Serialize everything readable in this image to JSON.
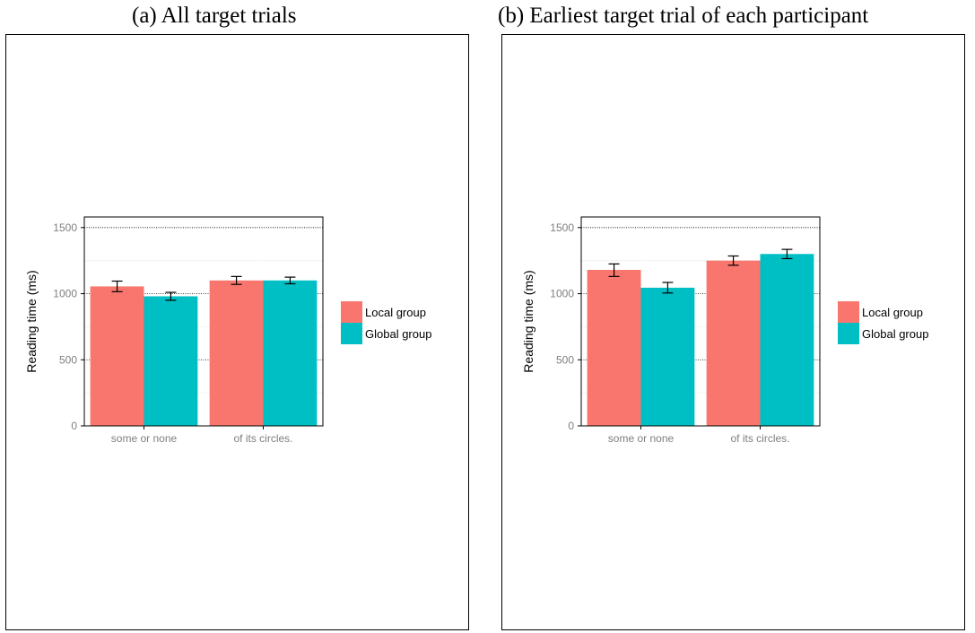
{
  "chart_data": [
    {
      "type": "bar",
      "title": "(a) All target trials",
      "ylabel": "Reading time (ms)",
      "xlabel": "",
      "categories": [
        "some or none",
        "of its circles."
      ],
      "ylim": [
        0,
        1580
      ],
      "yticks": [
        0,
        500,
        1000,
        1500
      ],
      "grid": true,
      "legend": "right",
      "series": [
        {
          "name": "Local group",
          "color": "#F8766D",
          "values": [
            1055,
            1100
          ],
          "err_low": [
            1015,
            1070
          ],
          "err_high": [
            1095,
            1130
          ]
        },
        {
          "name": "Global group",
          "color": "#00BFC4",
          "values": [
            980,
            1100
          ],
          "err_low": [
            950,
            1075
          ],
          "err_high": [
            1010,
            1125
          ]
        }
      ]
    },
    {
      "type": "bar",
      "title": "(b) Earliest target trial of each participant",
      "ylabel": "Reading time (ms)",
      "xlabel": "",
      "categories": [
        "some or none",
        "of its circles."
      ],
      "ylim": [
        0,
        1580
      ],
      "yticks": [
        0,
        500,
        1000,
        1500
      ],
      "grid": true,
      "legend": "right",
      "series": [
        {
          "name": "Local group",
          "color": "#F8766D",
          "values": [
            1180,
            1250
          ],
          "err_low": [
            1130,
            1215
          ],
          "err_high": [
            1225,
            1285
          ]
        },
        {
          "name": "Global group",
          "color": "#00BFC4",
          "values": [
            1045,
            1300
          ],
          "err_low": [
            1005,
            1265
          ],
          "err_high": [
            1085,
            1335
          ]
        }
      ]
    }
  ]
}
